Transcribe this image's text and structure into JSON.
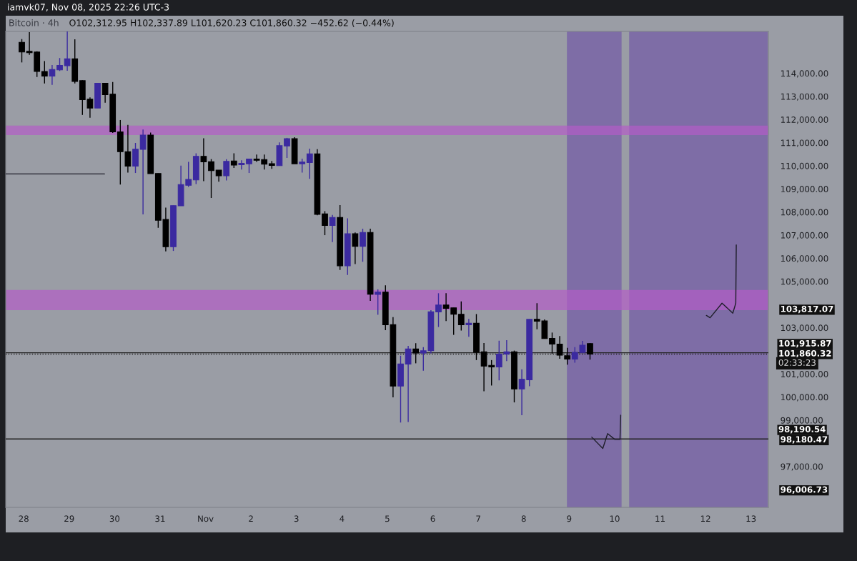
{
  "chart_data": {
    "type": "candlestick",
    "title": "Bitcoin · 4h",
    "subtitle": "O102,312.95 H102,337.89 L101,620.23 C101,860.32 −452.62 (−0.44%)",
    "annotations": [
      "iamvk07, Nov 08, 2025 22:26 UTC-3",
      "02:33:23"
    ],
    "x": [
      "2025-10-27T23:00",
      "2025-10-28T03:00",
      "2025-10-28T07:00",
      "2025-10-28T11:00",
      "2025-10-28T15:00",
      "2025-10-28T19:00",
      "2025-10-28T23:00",
      "2025-10-29T03:00",
      "2025-10-29T07:00",
      "2025-10-29T11:00",
      "2025-10-29T15:00",
      "2025-10-29T19:00",
      "2025-10-29T23:00",
      "2025-10-30T03:00",
      "2025-10-30T07:00",
      "2025-10-30T11:00",
      "2025-10-30T15:00",
      "2025-10-30T19:00",
      "2025-10-30T23:00",
      "2025-10-31T03:00",
      "2025-10-31T07:00",
      "2025-10-31T11:00",
      "2025-10-31T15:00",
      "2025-10-31T19:00",
      "2025-10-31T23:00",
      "2025-11-01T03:00",
      "2025-11-01T07:00",
      "2025-11-01T11:00",
      "2025-11-01T15:00",
      "2025-11-01T19:00",
      "2025-11-01T23:00",
      "2025-11-02T03:00",
      "2025-11-02T07:00",
      "2025-11-02T11:00",
      "2025-11-02T15:00",
      "2025-11-02T19:00",
      "2025-11-02T23:00",
      "2025-11-03T03:00",
      "2025-11-03T07:00",
      "2025-11-03T11:00",
      "2025-11-03T15:00",
      "2025-11-03T19:00",
      "2025-11-03T23:00",
      "2025-11-04T03:00",
      "2025-11-04T07:00",
      "2025-11-04T11:00",
      "2025-11-04T15:00",
      "2025-11-04T19:00",
      "2025-11-04T23:00",
      "2025-11-05T03:00",
      "2025-11-05T07:00",
      "2025-11-05T11:00",
      "2025-11-05T15:00",
      "2025-11-05T19:00",
      "2025-11-05T23:00",
      "2025-11-06T03:00",
      "2025-11-06T07:00",
      "2025-11-06T11:00",
      "2025-11-06T15:00",
      "2025-11-06T19:00",
      "2025-11-06T23:00",
      "2025-11-07T03:00",
      "2025-11-07T07:00",
      "2025-11-07T11:00",
      "2025-11-07T15:00",
      "2025-11-07T19:00",
      "2025-11-07T23:00",
      "2025-11-08T03:00",
      "2025-11-08T07:00",
      "2025-11-08T11:00",
      "2025-11-08T15:00",
      "2025-11-08T19:00",
      "2025-11-08T23:00",
      "2025-11-09T03:00",
      "2025-11-09T07:00",
      "2025-11-09T11:00"
    ],
    "ohlc": [
      [
        115340,
        115480,
        114470,
        114920
      ],
      [
        114950,
        115780,
        114800,
        114890
      ],
      [
        114920,
        114950,
        113840,
        114080
      ],
      [
        114080,
        114530,
        113560,
        113880
      ],
      [
        113880,
        114360,
        113500,
        114160
      ],
      [
        114150,
        114660,
        114100,
        114340
      ],
      [
        114330,
        115810,
        114110,
        114630
      ],
      [
        114630,
        115470,
        113560,
        113650
      ],
      [
        113680,
        113700,
        112200,
        112860
      ],
      [
        112880,
        112960,
        112080,
        112500
      ],
      [
        112500,
        113570,
        112500,
        113570
      ],
      [
        113570,
        113570,
        112730,
        113080
      ],
      [
        113100,
        113620,
        111420,
        111470
      ],
      [
        111470,
        111980,
        109190,
        110610
      ],
      [
        110610,
        111770,
        109710,
        109990
      ],
      [
        109990,
        110990,
        109690,
        110720
      ],
      [
        110710,
        111570,
        107900,
        111330
      ],
      [
        111330,
        111440,
        109660,
        109660
      ],
      [
        109670,
        109670,
        107320,
        107650
      ],
      [
        107680,
        108190,
        106300,
        106500
      ],
      [
        106500,
        108280,
        106320,
        108280
      ],
      [
        108270,
        110010,
        108270,
        109190
      ],
      [
        109160,
        110170,
        109090,
        109410
      ],
      [
        109390,
        110540,
        109210,
        110410
      ],
      [
        110410,
        111190,
        109340,
        110170
      ],
      [
        110180,
        110290,
        108610,
        109790
      ],
      [
        109810,
        109810,
        109310,
        109570
      ],
      [
        109570,
        110290,
        109370,
        110190
      ],
      [
        110210,
        110540,
        109910,
        110030
      ],
      [
        110050,
        110240,
        109840,
        110110
      ],
      [
        110090,
        110290,
        109690,
        110290
      ],
      [
        110290,
        110490,
        110170,
        110240
      ],
      [
        110270,
        110490,
        109840,
        110070
      ],
      [
        110090,
        110210,
        109870,
        110020
      ],
      [
        110010,
        111010,
        110010,
        110870
      ],
      [
        110860,
        111210,
        110340,
        111170
      ],
      [
        111170,
        111240,
        110090,
        110090
      ],
      [
        110090,
        110310,
        109710,
        110160
      ],
      [
        110140,
        110740,
        109440,
        110520
      ],
      [
        110520,
        110720,
        107860,
        107900
      ],
      [
        107920,
        108040,
        107000,
        107420
      ],
      [
        107420,
        107880,
        106700,
        107770
      ],
      [
        107770,
        108300,
        105500,
        105680
      ],
      [
        105680,
        107730,
        105280,
        107060
      ],
      [
        107060,
        107120,
        105750,
        106520
      ],
      [
        106520,
        107280,
        105850,
        107120
      ],
      [
        107120,
        107280,
        104160,
        104450
      ],
      [
        104440,
        104660,
        103560,
        104540
      ],
      [
        104540,
        104830,
        102890,
        103130
      ],
      [
        103130,
        103460,
        99990,
        100480
      ],
      [
        100480,
        101790,
        98900,
        101430
      ],
      [
        101430,
        102210,
        98920,
        102080
      ],
      [
        102080,
        102330,
        101460,
        101910
      ],
      [
        101910,
        102160,
        101140,
        102000
      ],
      [
        102010,
        103760,
        101890,
        103690
      ],
      [
        103680,
        104490,
        103030,
        103980
      ],
      [
        103980,
        104490,
        103290,
        103840
      ],
      [
        103860,
        103860,
        102690,
        103580
      ],
      [
        103580,
        104140,
        102880,
        103130
      ],
      [
        103130,
        103380,
        102610,
        103190
      ],
      [
        103190,
        103590,
        101600,
        101940
      ],
      [
        101960,
        102340,
        100250,
        101340
      ],
      [
        101370,
        101600,
        100500,
        101300
      ],
      [
        101300,
        102440,
        100720,
        101860
      ],
      [
        101860,
        102460,
        101560,
        101960
      ],
      [
        101960,
        102010,
        99770,
        100350
      ],
      [
        100350,
        101200,
        99220,
        100770
      ],
      [
        100750,
        103360,
        100470,
        103360
      ],
      [
        103360,
        104060,
        102930,
        103280
      ],
      [
        103290,
        103360,
        102530,
        102530
      ],
      [
        102540,
        102790,
        101880,
        102290
      ],
      [
        102290,
        102640,
        101660,
        101810
      ],
      [
        101790,
        102130,
        101400,
        101640
      ],
      [
        101640,
        102160,
        101490,
        101930
      ],
      [
        101930,
        102430,
        101930,
        102240
      ],
      [
        102312.95,
        102337.89,
        101620.23,
        101860.32
      ]
    ],
    "colors": [
      "#000000",
      "#000000",
      "#000000",
      "#000000",
      "#3b2aa0",
      "#3b2aa0",
      "#3b2aa0",
      "#000000",
      "#000000",
      "#000000",
      "#3b2aa0",
      "#000000",
      "#000000",
      "#000000",
      "#000000",
      "#3b2aa0",
      "#3b2aa0",
      "#000000",
      "#000000",
      "#000000",
      "#3b2aa0",
      "#3b2aa0",
      "#3b2aa0",
      "#3b2aa0",
      "#000000",
      "#000000",
      "#000000",
      "#3b2aa0",
      "#000000",
      "#3b2aa0",
      "#3b2aa0",
      "#000000",
      "#000000",
      "#000000",
      "#3b2aa0",
      "#3b2aa0",
      "#000000",
      "#3b2aa0",
      "#3b2aa0",
      "#000000",
      "#000000",
      "#3b2aa0",
      "#000000",
      "#3b2aa0",
      "#000000",
      "#3b2aa0",
      "#000000",
      "#3b2aa0",
      "#000000",
      "#000000",
      "#3b2aa0",
      "#3b2aa0",
      "#000000",
      "#3b2aa0",
      "#3b2aa0",
      "#3b2aa0",
      "#000000",
      "#000000",
      "#000000",
      "#3b2aa0",
      "#000000",
      "#000000",
      "#000000",
      "#3b2aa0",
      "#3b2aa0",
      "#000000",
      "#3b2aa0",
      "#3b2aa0",
      "#000000",
      "#000000",
      "#000000",
      "#000000",
      "#000000",
      "#3b2aa0",
      "#3b2aa0",
      "#000000"
    ],
    "series": [
      {
        "type": "line",
        "color": "#1e1e2a",
        "x": [
          "2025-10-27T14:30",
          "2025-10-29T18:40"
        ],
        "values": [
          109650,
          109650
        ]
      },
      {
        "type": "line",
        "color": "#1e1e2a",
        "x": [
          "2025-11-09T11:53",
          "2025-11-09T17:45",
          "2025-11-09T20:18",
          "2025-11-10T00:04",
          "2025-11-10T02:50",
          "2025-11-10T03:12"
        ],
        "values": [
          98270,
          97780,
          98420,
          98170,
          98170,
          99220
        ]
      },
      {
        "type": "line",
        "color": "#1e1e2a",
        "x": [
          "2025-11-12T00:27",
          "2025-11-12T02:24",
          "2025-11-12T08:42",
          "2025-11-12T14:24",
          "2025-11-12T15:58",
          "2025-11-12T16:13"
        ],
        "values": [
          103530,
          103430,
          104060,
          103630,
          104060,
          106580
        ]
      }
    ],
    "bands": [
      {
        "axis": "x",
        "from": "2025-11-08T22:48",
        "to": "2025-11-10T03:40",
        "color": "#7b68a6"
      },
      {
        "axis": "x",
        "from": "2025-11-10T07:40",
        "to": "2025-11-13T08:50",
        "color": "#7b68a6"
      },
      {
        "axis": "y",
        "from": 111330,
        "to": 111740,
        "color": "#b45cc8"
      },
      {
        "axis": "y",
        "from": 103760,
        "to": 104630,
        "color": "#b45cc8"
      }
    ],
    "ref_lines": [
      {
        "axis": "y",
        "value": 101915.87,
        "label": "101,915.87",
        "color": "#222222",
        "line_style": "solid"
      },
      {
        "axis": "y",
        "value": 101860.32,
        "label": "101,860.32",
        "color": "#222222",
        "line_style": "dotted"
      },
      {
        "axis": "y",
        "value": 98190.54,
        "label": "98,190.54",
        "color": "#222222",
        "line_style": "solid"
      }
    ],
    "xlim": [
      "2025-10-27T14:30",
      "2025-11-13T09:10"
    ],
    "xticks": [
      {
        "value": "2025-10-28",
        "label": "28"
      },
      {
        "value": "2025-10-29",
        "label": "29"
      },
      {
        "value": "2025-10-30",
        "label": "30"
      },
      {
        "value": "2025-10-31",
        "label": "31"
      },
      {
        "value": "2025-11-01",
        "label": "Nov"
      },
      {
        "value": "2025-11-02",
        "label": "2"
      },
      {
        "value": "2025-11-03",
        "label": "3"
      },
      {
        "value": "2025-11-04",
        "label": "4"
      },
      {
        "value": "2025-11-05",
        "label": "5"
      },
      {
        "value": "2025-11-06",
        "label": "6"
      },
      {
        "value": "2025-11-07",
        "label": "7"
      },
      {
        "value": "2025-11-08",
        "label": "8"
      },
      {
        "value": "2025-11-09",
        "label": "9"
      },
      {
        "value": "2025-11-10",
        "label": "10"
      },
      {
        "value": "2025-11-11",
        "label": "11"
      },
      {
        "value": "2025-11-12",
        "label": "12"
      },
      {
        "value": "2025-11-13",
        "label": "13"
      }
    ],
    "ylim": [
      95230,
      115810
    ],
    "yticks": [
      {
        "value": 96006.73,
        "label": "96,006.73"
      },
      {
        "value": 97000,
        "label": "97,000.00"
      },
      {
        "value": 98180.47,
        "label": "98,180.47"
      },
      {
        "value": 99000,
        "label": "99,000.00"
      },
      {
        "value": 100000,
        "label": "100,000.00"
      },
      {
        "value": 101000,
        "label": "101,000.00"
      },
      {
        "value": 103000,
        "label": "103,000.00"
      },
      {
        "value": 103817.07,
        "label": "103,817.07"
      },
      {
        "value": 105000,
        "label": "105,000.00"
      },
      {
        "value": 106000,
        "label": "106,000.00"
      },
      {
        "value": 107000,
        "label": "107,000.00"
      },
      {
        "value": 108000,
        "label": "108,000.00"
      },
      {
        "value": 109000,
        "label": "109,000.00"
      },
      {
        "value": 110000,
        "label": "110,000.00"
      },
      {
        "value": 111000,
        "label": "111,000.00"
      },
      {
        "value": 112000,
        "label": "112,000.00"
      },
      {
        "value": 113000,
        "label": "113,000.00"
      },
      {
        "value": 114000,
        "label": "114,000.00"
      }
    ],
    "grid": false
  }
}
